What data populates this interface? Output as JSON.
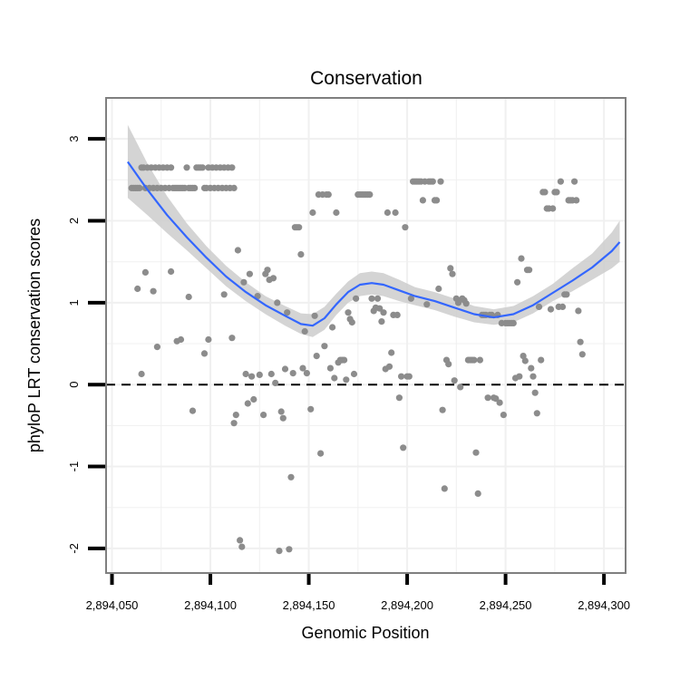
{
  "chart_data": {
    "type": "scatter",
    "title": "Conservation",
    "xlabel": "Genomic Position",
    "ylabel": "phyloP LRT conservation scores",
    "xlim": [
      2894047,
      2894311
    ],
    "ylim": [
      -2.3,
      3.5
    ],
    "x_ticks": [
      {
        "value": 2894050,
        "label": "2,894,050"
      },
      {
        "value": 2894100,
        "label": "2,894,100"
      },
      {
        "value": 2894150,
        "label": "2,894,150"
      },
      {
        "value": 2894200,
        "label": "2,894,200"
      },
      {
        "value": 2894250,
        "label": "2,894,250"
      },
      {
        "value": 2894300,
        "label": "2,894,300"
      }
    ],
    "y_ticks": [
      {
        "value": -2,
        "label": "-2"
      },
      {
        "value": -1,
        "label": "-1"
      },
      {
        "value": 0,
        "label": "0"
      },
      {
        "value": 1,
        "label": "1"
      },
      {
        "value": 2,
        "label": "2"
      },
      {
        "value": 3,
        "label": "3"
      }
    ],
    "reference_line": {
      "y": 0,
      "style": "dashed"
    },
    "grid": true,
    "colors": {
      "points": "#8c8c8c",
      "smooth": "#3366ff",
      "band": "#cccccc",
      "grid": "#f0f0f0",
      "border": "#7f7f7f"
    },
    "series": [
      {
        "name": "scores",
        "points": [
          [
            2894060,
            2.4
          ],
          [
            2894061,
            2.4
          ],
          [
            2894062,
            2.4
          ],
          [
            2894063,
            2.4
          ],
          [
            2894064,
            2.4
          ],
          [
            2894065,
            2.65
          ],
          [
            2894066,
            2.65
          ],
          [
            2894067,
            2.4
          ],
          [
            2894068,
            2.65
          ],
          [
            2894069,
            2.4
          ],
          [
            2894070,
            2.65
          ],
          [
            2894071,
            2.4
          ],
          [
            2894072,
            2.65
          ],
          [
            2894073,
            2.4
          ],
          [
            2894074,
            2.65
          ],
          [
            2894075,
            2.4
          ],
          [
            2894076,
            2.65
          ],
          [
            2894077,
            2.4
          ],
          [
            2894078,
            2.65
          ],
          [
            2894079,
            2.4
          ],
          [
            2894080,
            2.65
          ],
          [
            2894081,
            2.4
          ],
          [
            2894082,
            2.4
          ],
          [
            2894083,
            2.4
          ],
          [
            2894084,
            2.4
          ],
          [
            2894085,
            2.4
          ],
          [
            2894086,
            2.4
          ],
          [
            2894087,
            2.4
          ],
          [
            2894088,
            2.65
          ],
          [
            2894089,
            2.4
          ],
          [
            2894090,
            2.4
          ],
          [
            2894091,
            2.4
          ],
          [
            2894092,
            2.4
          ],
          [
            2894093,
            2.65
          ],
          [
            2894094,
            2.65
          ],
          [
            2894095,
            2.65
          ],
          [
            2894096,
            2.65
          ],
          [
            2894097,
            2.4
          ],
          [
            2894098,
            2.4
          ],
          [
            2894099,
            2.65
          ],
          [
            2894100,
            2.4
          ],
          [
            2894101,
            2.65
          ],
          [
            2894102,
            2.4
          ],
          [
            2894103,
            2.65
          ],
          [
            2894104,
            2.4
          ],
          [
            2894105,
            2.65
          ],
          [
            2894106,
            2.4
          ],
          [
            2894107,
            2.65
          ],
          [
            2894108,
            2.4
          ],
          [
            2894109,
            2.65
          ],
          [
            2894110,
            2.4
          ],
          [
            2894111,
            2.65
          ],
          [
            2894112,
            2.4
          ],
          [
            2894063,
            1.17
          ],
          [
            2894065,
            0.13
          ],
          [
            2894067,
            1.37
          ],
          [
            2894071,
            1.14
          ],
          [
            2894073,
            0.46
          ],
          [
            2894080,
            1.38
          ],
          [
            2894083,
            0.53
          ],
          [
            2894085,
            0.55
          ],
          [
            2894089,
            1.07
          ],
          [
            2894091,
            -0.32
          ],
          [
            2894097,
            0.38
          ],
          [
            2894099,
            0.55
          ],
          [
            2894107,
            1.1
          ],
          [
            2894111,
            0.57
          ],
          [
            2894112,
            -0.47
          ],
          [
            2894113,
            -0.37
          ],
          [
            2894114,
            1.64
          ],
          [
            2894115,
            -1.9
          ],
          [
            2894116,
            -1.98
          ],
          [
            2894117,
            1.25
          ],
          [
            2894118,
            0.13
          ],
          [
            2894119,
            -0.23
          ],
          [
            2894120,
            1.35
          ],
          [
            2894121,
            0.1
          ],
          [
            2894122,
            -0.18
          ],
          [
            2894124,
            1.08
          ],
          [
            2894125,
            0.12
          ],
          [
            2894127,
            -0.37
          ],
          [
            2894128,
            1.35
          ],
          [
            2894129,
            1.4
          ],
          [
            2894130,
            1.28
          ],
          [
            2894131,
            0.13
          ],
          [
            2894132,
            1.3
          ],
          [
            2894133,
            0.02
          ],
          [
            2894134,
            1.0
          ],
          [
            2894135,
            -2.03
          ],
          [
            2894136,
            -0.33
          ],
          [
            2894137,
            -0.41
          ],
          [
            2894138,
            0.19
          ],
          [
            2894139,
            0.88
          ],
          [
            2894140,
            -2.01
          ],
          [
            2894141,
            -1.13
          ],
          [
            2894142,
            0.14
          ],
          [
            2894143,
            1.92
          ],
          [
            2894144,
            1.92
          ],
          [
            2894145,
            1.92
          ],
          [
            2894146,
            1.59
          ],
          [
            2894147,
            0.2
          ],
          [
            2894148,
            0.65
          ],
          [
            2894149,
            0.14
          ],
          [
            2894151,
            -0.3
          ],
          [
            2894152,
            2.1
          ],
          [
            2894153,
            0.84
          ],
          [
            2894154,
            0.35
          ],
          [
            2894155,
            2.32
          ],
          [
            2894156,
            -0.84
          ],
          [
            2894157,
            2.32
          ],
          [
            2894158,
            0.47
          ],
          [
            2894159,
            2.32
          ],
          [
            2894160,
            2.32
          ],
          [
            2894161,
            0.2
          ],
          [
            2894162,
            0.7
          ],
          [
            2894163,
            0.08
          ],
          [
            2894164,
            2.1
          ],
          [
            2894165,
            0.27
          ],
          [
            2894166,
            0.3
          ],
          [
            2894167,
            0.3
          ],
          [
            2894168,
            0.3
          ],
          [
            2894169,
            0.06
          ],
          [
            2894170,
            0.88
          ],
          [
            2894171,
            0.8
          ],
          [
            2894172,
            0.76
          ],
          [
            2894173,
            0.13
          ],
          [
            2894174,
            1.05
          ],
          [
            2894175,
            2.32
          ],
          [
            2894176,
            2.32
          ],
          [
            2894177,
            2.32
          ],
          [
            2894178,
            2.32
          ],
          [
            2894179,
            2.32
          ],
          [
            2894180,
            2.32
          ],
          [
            2894181,
            2.32
          ],
          [
            2894182,
            1.05
          ],
          [
            2894183,
            0.9
          ],
          [
            2894184,
            0.94
          ],
          [
            2894185,
            1.05
          ],
          [
            2894186,
            0.93
          ],
          [
            2894187,
            0.77
          ],
          [
            2894188,
            0.88
          ],
          [
            2894189,
            0.19
          ],
          [
            2894190,
            2.1
          ],
          [
            2894191,
            0.22
          ],
          [
            2894192,
            0.39
          ],
          [
            2894193,
            0.85
          ],
          [
            2894194,
            2.1
          ],
          [
            2894195,
            0.85
          ],
          [
            2894196,
            -0.16
          ],
          [
            2894197,
            0.1
          ],
          [
            2894198,
            -0.77
          ],
          [
            2894199,
            1.92
          ],
          [
            2894200,
            0.1
          ],
          [
            2894201,
            0.1
          ],
          [
            2894202,
            1.05
          ],
          [
            2894203,
            2.48
          ],
          [
            2894204,
            2.48
          ],
          [
            2894205,
            2.48
          ],
          [
            2894206,
            2.48
          ],
          [
            2894207,
            2.48
          ],
          [
            2894208,
            2.25
          ],
          [
            2894209,
            2.48
          ],
          [
            2894210,
            0.98
          ],
          [
            2894211,
            2.48
          ],
          [
            2894212,
            2.48
          ],
          [
            2894213,
            2.48
          ],
          [
            2894214,
            2.25
          ],
          [
            2894215,
            2.25
          ],
          [
            2894216,
            1.17
          ],
          [
            2894217,
            2.48
          ],
          [
            2894218,
            -0.31
          ],
          [
            2894219,
            -1.27
          ],
          [
            2894220,
            0.3
          ],
          [
            2894221,
            0.25
          ],
          [
            2894222,
            1.42
          ],
          [
            2894223,
            1.35
          ],
          [
            2894224,
            0.05
          ],
          [
            2894225,
            1.05
          ],
          [
            2894226,
            1.0
          ],
          [
            2894227,
            -0.03
          ],
          [
            2894228,
            1.05
          ],
          [
            2894229,
            1.03
          ],
          [
            2894230,
            0.99
          ],
          [
            2894231,
            0.3
          ],
          [
            2894232,
            0.3
          ],
          [
            2894233,
            0.3
          ],
          [
            2894234,
            0.3
          ],
          [
            2894235,
            -0.83
          ],
          [
            2894236,
            -1.33
          ],
          [
            2894237,
            0.3
          ],
          [
            2894238,
            0.85
          ],
          [
            2894239,
            0.85
          ],
          [
            2894240,
            0.85
          ],
          [
            2894241,
            -0.16
          ],
          [
            2894242,
            0.85
          ],
          [
            2894243,
            0.85
          ],
          [
            2894244,
            -0.16
          ],
          [
            2894245,
            -0.17
          ],
          [
            2894246,
            0.85
          ],
          [
            2894247,
            -0.22
          ],
          [
            2894248,
            0.75
          ],
          [
            2894249,
            -0.37
          ],
          [
            2894250,
            0.75
          ],
          [
            2894251,
            0.75
          ],
          [
            2894252,
            0.75
          ],
          [
            2894253,
            0.75
          ],
          [
            2894254,
            0.75
          ],
          [
            2894255,
            0.08
          ],
          [
            2894256,
            1.25
          ],
          [
            2894257,
            0.1
          ],
          [
            2894258,
            1.54
          ],
          [
            2894259,
            0.35
          ],
          [
            2894260,
            0.29
          ],
          [
            2894261,
            1.4
          ],
          [
            2894262,
            1.4
          ],
          [
            2894263,
            0.2
          ],
          [
            2894264,
            0.1
          ],
          [
            2894265,
            -0.1
          ],
          [
            2894266,
            -0.35
          ],
          [
            2894267,
            0.95
          ],
          [
            2894268,
            0.3
          ],
          [
            2894269,
            2.35
          ],
          [
            2894270,
            2.35
          ],
          [
            2894271,
            2.15
          ],
          [
            2894272,
            2.15
          ],
          [
            2894273,
            0.92
          ],
          [
            2894274,
            2.15
          ],
          [
            2894275,
            2.35
          ],
          [
            2894276,
            2.35
          ],
          [
            2894277,
            0.95
          ],
          [
            2894278,
            2.48
          ],
          [
            2894279,
            0.95
          ],
          [
            2894280,
            1.1
          ],
          [
            2894281,
            1.1
          ],
          [
            2894282,
            2.25
          ],
          [
            2894283,
            2.25
          ],
          [
            2894284,
            2.25
          ],
          [
            2894285,
            2.48
          ],
          [
            2894286,
            2.25
          ],
          [
            2894287,
            0.9
          ],
          [
            2894288,
            0.52
          ],
          [
            2894289,
            0.37
          ]
        ]
      }
    ],
    "smooth": {
      "name": "loess fit",
      "x": [
        2894058,
        2894068,
        2894078,
        2894088,
        2894098,
        2894108,
        2894118,
        2894128,
        2894138,
        2894146,
        2894152,
        2894158,
        2894164,
        2894170,
        2894176,
        2894182,
        2894188,
        2894196,
        2894204,
        2894214,
        2894224,
        2894234,
        2894244,
        2894254,
        2894264,
        2894274,
        2894284,
        2894294,
        2894304,
        2894308
      ],
      "y": [
        2.72,
        2.38,
        2.07,
        1.8,
        1.55,
        1.32,
        1.13,
        0.97,
        0.84,
        0.74,
        0.72,
        0.81,
        0.98,
        1.13,
        1.22,
        1.24,
        1.22,
        1.15,
        1.08,
        1.02,
        0.94,
        0.86,
        0.82,
        0.86,
        0.97,
        1.12,
        1.27,
        1.43,
        1.63,
        1.74
      ],
      "lower": [
        2.28,
        2.07,
        1.85,
        1.64,
        1.42,
        1.2,
        1.02,
        0.86,
        0.72,
        0.62,
        0.58,
        0.67,
        0.85,
        1.0,
        1.08,
        1.1,
        1.08,
        1.02,
        0.97,
        0.91,
        0.83,
        0.76,
        0.73,
        0.76,
        0.87,
        1.02,
        1.14,
        1.28,
        1.42,
        1.5
      ],
      "upper": [
        3.17,
        2.7,
        2.3,
        1.97,
        1.69,
        1.45,
        1.25,
        1.08,
        0.96,
        0.87,
        0.86,
        0.95,
        1.11,
        1.26,
        1.36,
        1.38,
        1.36,
        1.28,
        1.19,
        1.13,
        1.05,
        0.96,
        0.92,
        0.96,
        1.08,
        1.23,
        1.42,
        1.6,
        1.86,
        2.0
      ]
    }
  }
}
